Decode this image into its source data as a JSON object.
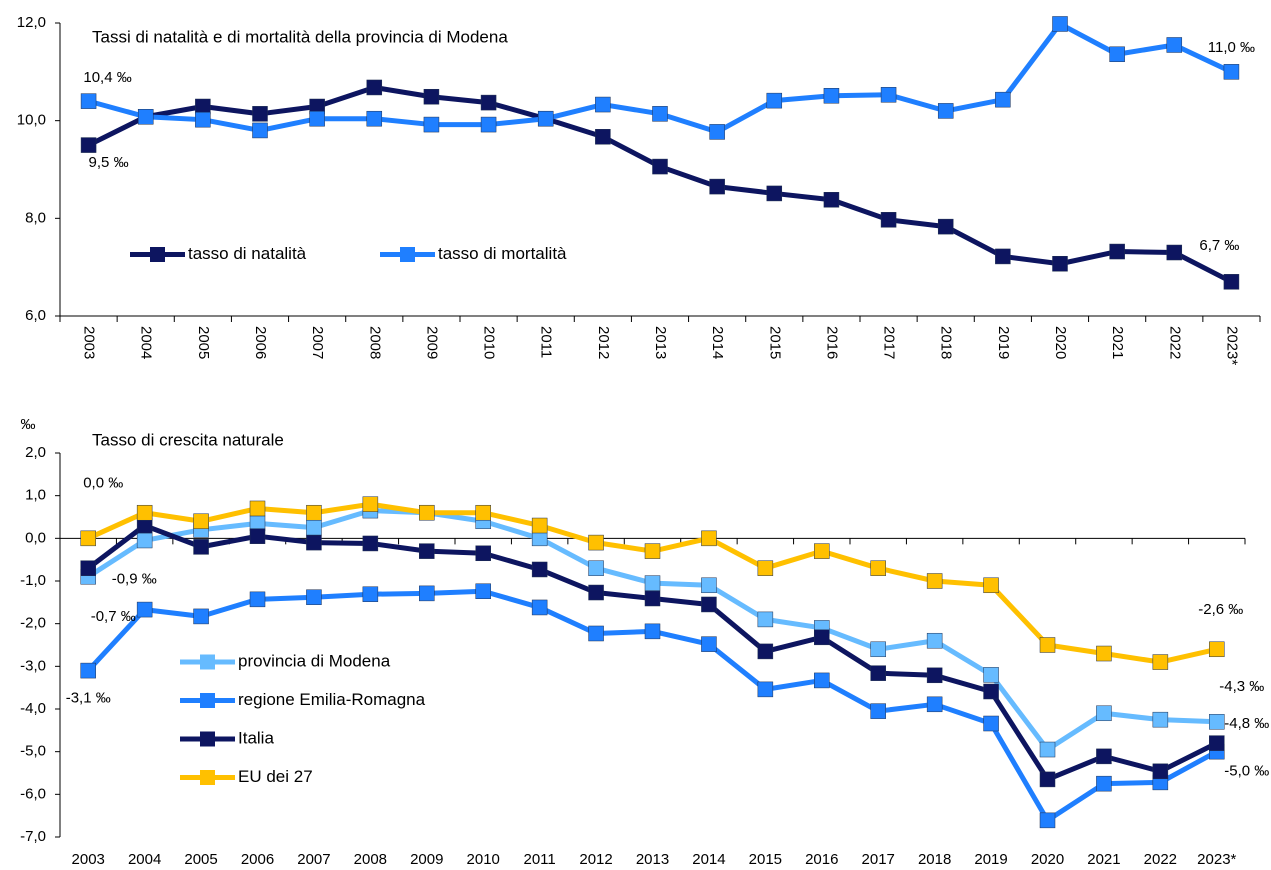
{
  "chart_data": [
    {
      "type": "line",
      "title": "Tassi di natalità e di mortalità della provincia di Modena",
      "categories": [
        "2003",
        "2004",
        "2005",
        "2006",
        "2007",
        "2008",
        "2009",
        "2010",
        "2011",
        "2012",
        "2013",
        "2014",
        "2015",
        "2016",
        "2017",
        "2018",
        "2019",
        "2020",
        "2021",
        "2022",
        "2023*"
      ],
      "series": [
        {
          "name": "tasso di natalità",
          "color": "#0d1560",
          "values": [
            9.5,
            10.08,
            10.29,
            10.14,
            10.29,
            10.68,
            10.49,
            10.37,
            10.04,
            9.67,
            9.06,
            8.65,
            8.51,
            8.38,
            7.97,
            7.83,
            7.22,
            7.07,
            7.32,
            7.3,
            6.7
          ],
          "value_labels": [
            "9,5 ‰",
            null,
            null,
            null,
            null,
            null,
            null,
            null,
            null,
            null,
            null,
            null,
            null,
            null,
            null,
            null,
            null,
            null,
            null,
            null,
            "6,7 ‰"
          ]
        },
        {
          "name": "tasso di mortalità",
          "color": "#1f7fff",
          "values": [
            10.4,
            10.08,
            10.02,
            9.8,
            10.04,
            10.04,
            9.92,
            9.92,
            10.04,
            10.33,
            10.14,
            9.77,
            10.41,
            10.51,
            10.53,
            10.2,
            10.43,
            11.98,
            11.36,
            11.55,
            11.0
          ],
          "value_labels": [
            "10,4 ‰",
            null,
            null,
            null,
            null,
            null,
            null,
            null,
            null,
            null,
            null,
            null,
            null,
            null,
            null,
            null,
            null,
            null,
            null,
            null,
            "11,0 ‰"
          ]
        }
      ],
      "ylim": [
        6,
        12
      ],
      "yticks": [
        {
          "value": 6,
          "label": "6,0"
        },
        {
          "value": 8,
          "label": "8,0"
        },
        {
          "value": 10,
          "label": "10,0"
        },
        {
          "value": 12,
          "label": "12,0"
        }
      ],
      "x_label_rotation": 90,
      "legend": "center left"
    },
    {
      "type": "line",
      "title": "Tasso di crescita naturale",
      "ylabel": "‰",
      "categories": [
        "2003",
        "2004",
        "2005",
        "2006",
        "2007",
        "2008",
        "2009",
        "2010",
        "2011",
        "2012",
        "2013",
        "2014",
        "2015",
        "2016",
        "2017",
        "2018",
        "2019",
        "2020",
        "2021",
        "2022",
        "2023*"
      ],
      "series": [
        {
          "name": "provincia di Modena",
          "color": "#66bbff",
          "values": [
            -0.9,
            -0.05,
            0.2,
            0.35,
            0.25,
            0.65,
            0.6,
            0.4,
            0.0,
            -0.7,
            -1.05,
            -1.1,
            -1.9,
            -2.1,
            -2.6,
            -2.4,
            -3.2,
            -4.95,
            -4.1,
            -4.25,
            -4.3
          ],
          "value_labels": [
            "-0,9 ‰",
            null,
            null,
            null,
            null,
            null,
            null,
            null,
            null,
            null,
            null,
            null,
            null,
            null,
            null,
            null,
            null,
            null,
            null,
            null,
            "-4,3 ‰"
          ]
        },
        {
          "name": "regione Emilia-Romagna",
          "color": "#1f7fff",
          "values": [
            -3.1,
            -1.67,
            -1.83,
            -1.43,
            -1.38,
            -1.31,
            -1.29,
            -1.24,
            -1.62,
            -2.23,
            -2.18,
            -2.48,
            -3.54,
            -3.33,
            -4.05,
            -3.89,
            -4.34,
            -6.61,
            -5.75,
            -5.72,
            -5.0
          ],
          "value_labels": [
            "-3,1 ‰",
            null,
            null,
            null,
            null,
            null,
            null,
            null,
            null,
            null,
            null,
            null,
            null,
            null,
            null,
            null,
            null,
            null,
            null,
            null,
            "-5,0 ‰"
          ]
        },
        {
          "name": "Italia",
          "color": "#0d1560",
          "values": [
            -0.7,
            0.3,
            -0.2,
            0.05,
            -0.1,
            -0.12,
            -0.3,
            -0.35,
            -0.73,
            -1.27,
            -1.41,
            -1.55,
            -2.65,
            -2.32,
            -3.16,
            -3.21,
            -3.59,
            -5.65,
            -5.11,
            -5.46,
            -4.8
          ],
          "value_labels": [
            "-0,7 ‰",
            null,
            null,
            null,
            null,
            null,
            null,
            null,
            null,
            null,
            null,
            null,
            null,
            null,
            null,
            null,
            null,
            null,
            null,
            null,
            "-4,8 ‰"
          ]
        },
        {
          "name": "EU dei 27",
          "color": "#ffc000",
          "values": [
            0.0,
            0.6,
            0.4,
            0.7,
            0.6,
            0.8,
            0.6,
            0.6,
            0.3,
            -0.1,
            -0.3,
            0.0,
            -0.7,
            -0.3,
            -0.7,
            -1.0,
            -1.1,
            -2.5,
            -2.7,
            -2.9,
            -2.6
          ],
          "value_labels": [
            "0,0 ‰",
            null,
            null,
            null,
            null,
            null,
            null,
            null,
            null,
            null,
            null,
            null,
            null,
            null,
            null,
            null,
            null,
            null,
            null,
            null,
            "-2,6 ‰"
          ]
        }
      ],
      "ylim": [
        -7,
        2
      ],
      "yticks": [
        {
          "value": -7,
          "label": "-7,0"
        },
        {
          "value": -6,
          "label": "-6,0"
        },
        {
          "value": -5,
          "label": "-5,0"
        },
        {
          "value": -4,
          "label": "-4,0"
        },
        {
          "value": -3,
          "label": "-3,0"
        },
        {
          "value": -2,
          "label": "-2,0"
        },
        {
          "value": -1,
          "label": "-1,0"
        },
        {
          "value": 0,
          "label": "0,0"
        },
        {
          "value": 1,
          "label": "1,0"
        },
        {
          "value": 2,
          "label": "2,0"
        }
      ],
      "x_label_rotation": 0,
      "legend": "lower left"
    }
  ]
}
